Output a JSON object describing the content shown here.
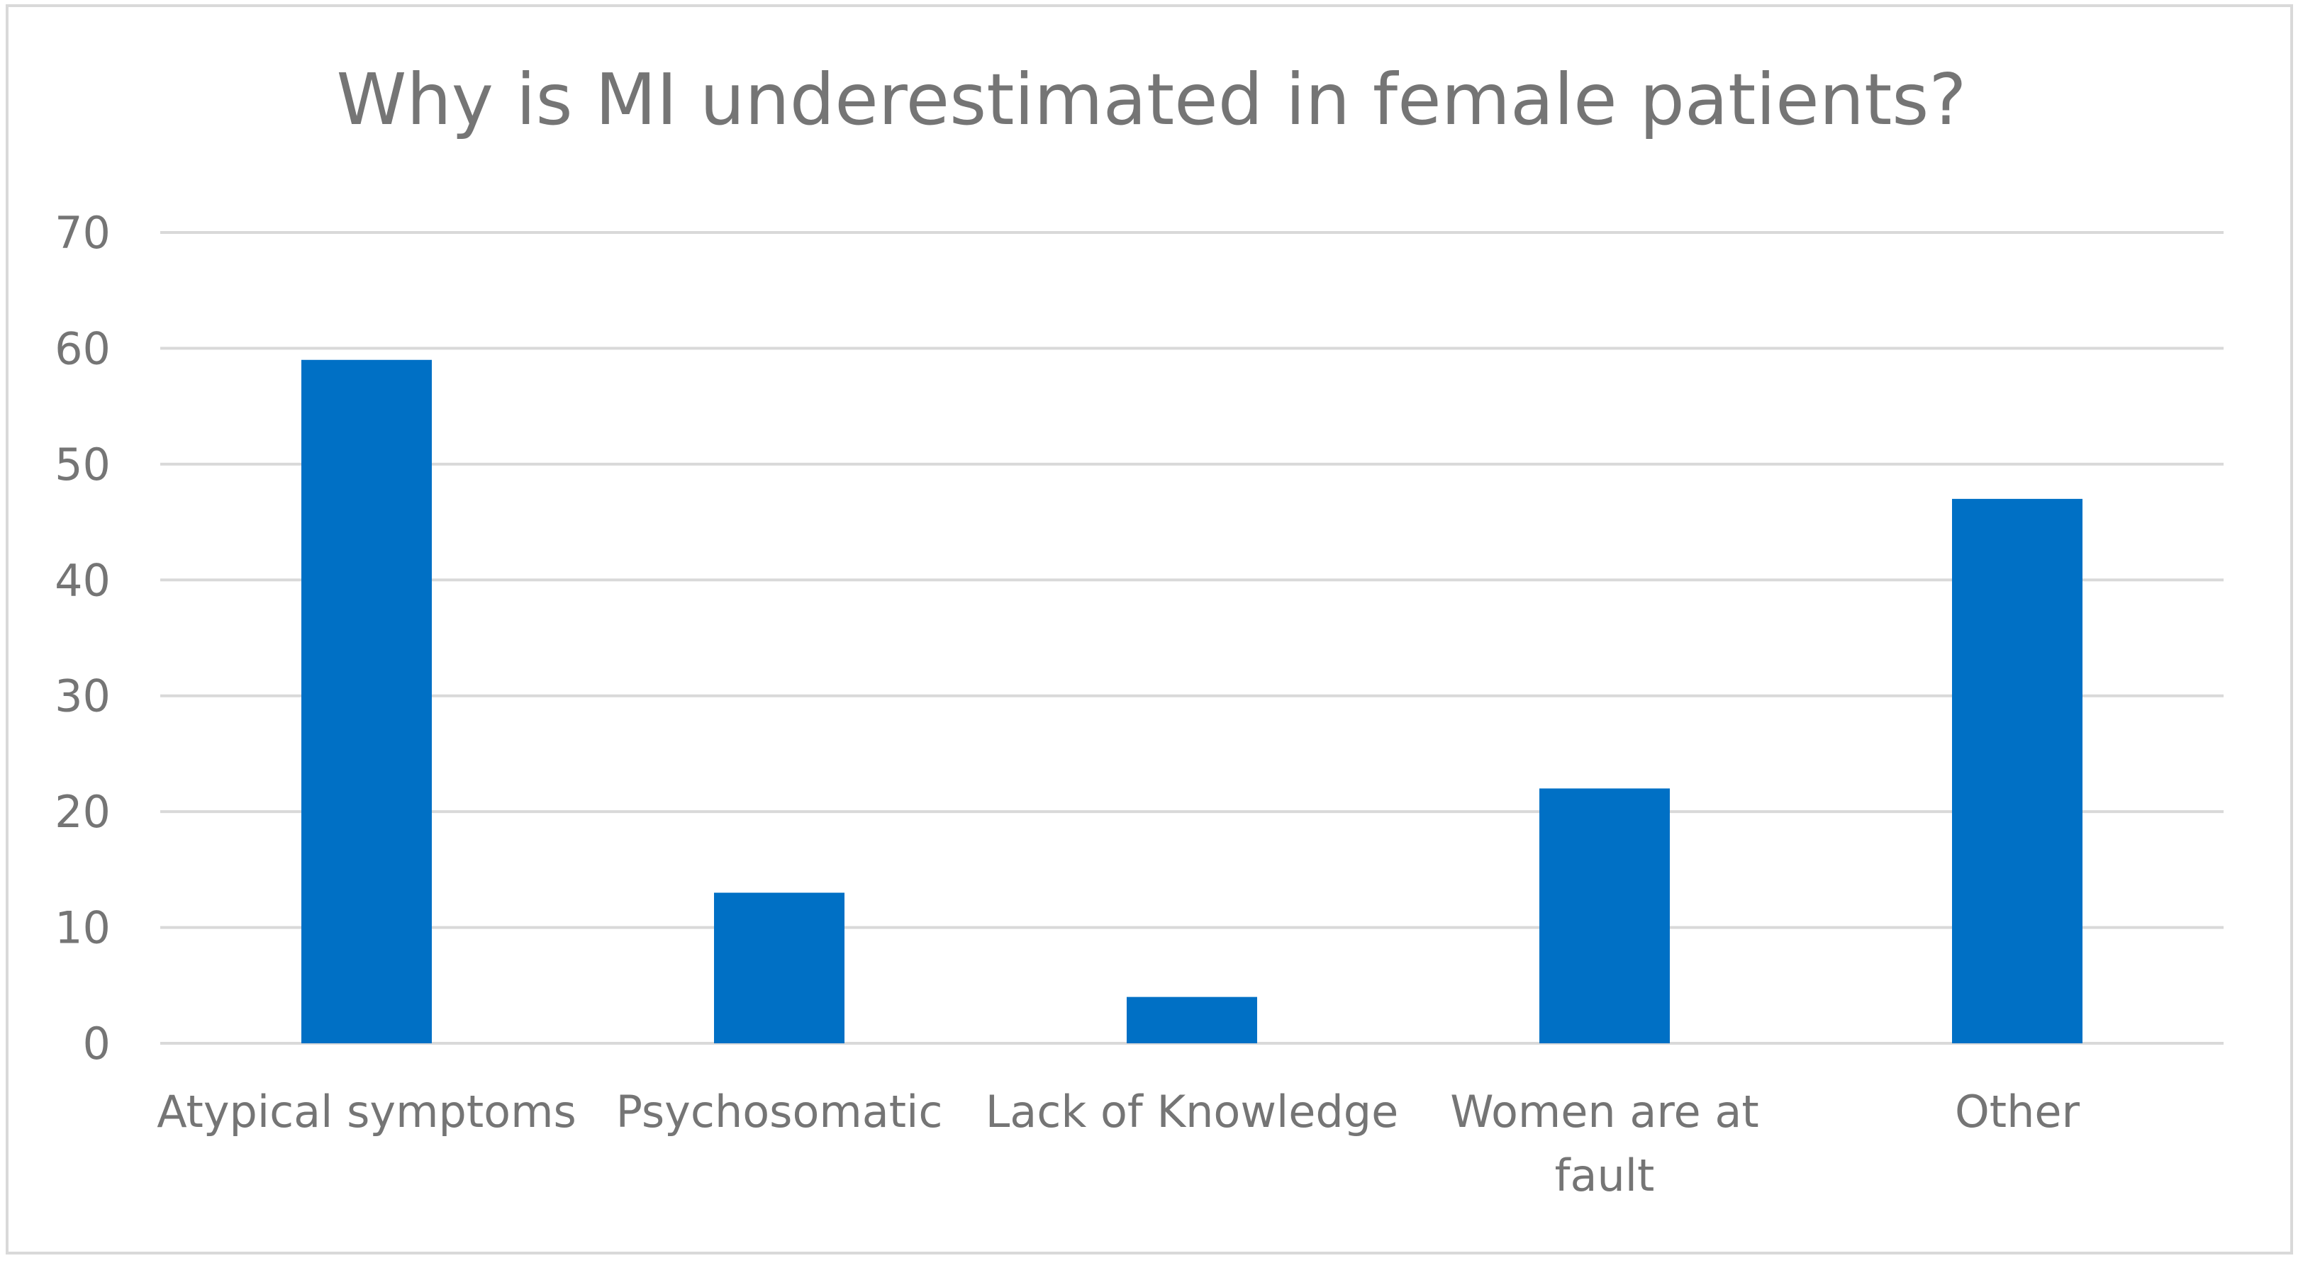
{
  "chart_data": {
    "type": "bar",
    "title": "Why is MI underestimated in female patients?",
    "xlabel": "",
    "ylabel": "",
    "categories": [
      [
        "Atypical symptoms"
      ],
      [
        "Psychosomatic"
      ],
      [
        "Lack of Knowledge"
      ],
      [
        "Women are at",
        "fault"
      ],
      [
        "Other"
      ]
    ],
    "values": [
      59,
      13,
      4,
      22,
      47
    ],
    "ylim": [
      0,
      70
    ],
    "yticks": [
      "0",
      "10",
      "20",
      "30",
      "40",
      "50",
      "60",
      "70"
    ],
    "grid": true,
    "legend": "none",
    "bar_color": "#0070c5",
    "grid_color": "#d9d9d9",
    "text_color": "#757575"
  }
}
